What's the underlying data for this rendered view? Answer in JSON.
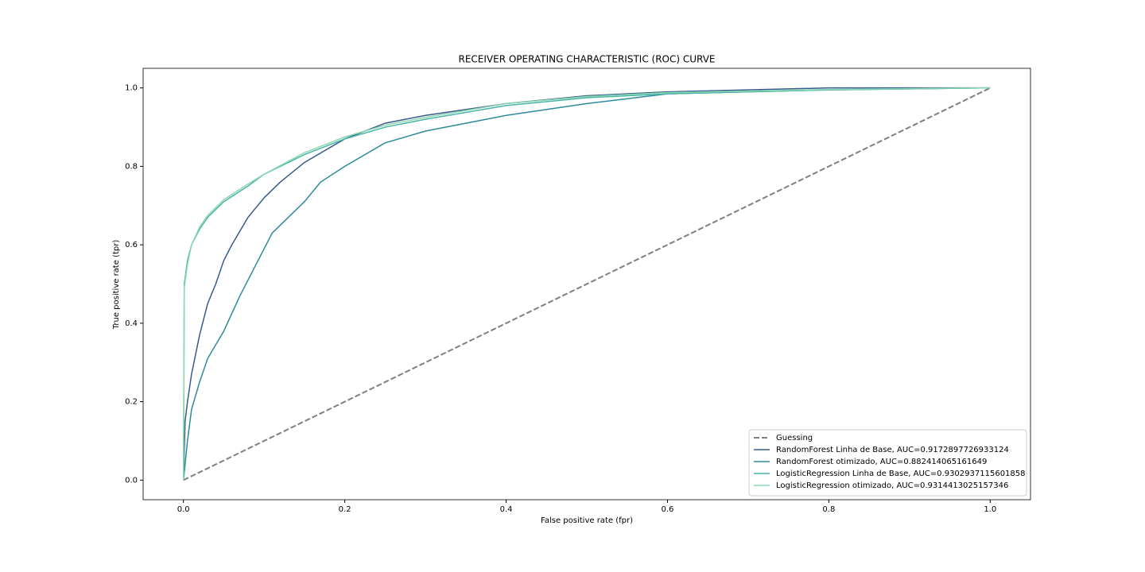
{
  "chart_data": {
    "type": "line",
    "title": "RECEIVER OPERATING CHARACTERISTIC (ROC) CURVE",
    "x_label": "False positive rate (fpr)",
    "y_label": "True positive rate (tpr)",
    "xlim": [
      -0.05,
      1.05
    ],
    "ylim": [
      -0.05,
      1.05
    ],
    "xticks": [
      {
        "value": 0,
        "label": "0.0"
      },
      0.2,
      0.4,
      0.6,
      0.8,
      {
        "value": 1,
        "label": "1.0"
      }
    ],
    "yticks": [
      {
        "value": 0,
        "label": "0.0"
      },
      0.2,
      0.4,
      0.6,
      0.8,
      {
        "value": 1,
        "label": "1.0"
      }
    ],
    "grid": false,
    "legend": "lower right",
    "series": [
      {
        "name": "Guessing",
        "color": "#808080",
        "linestyle": "dashed",
        "x": [
          0,
          1
        ],
        "values": [
          0,
          1
        ]
      },
      {
        "name": "RandomForest Linha de Base, AUC=0.9172897726933124",
        "color": "#365c8d",
        "x": [
          0,
          0.002,
          0.005,
          0.01,
          0.02,
          0.03,
          0.04,
          0.05,
          0.06,
          0.08,
          0.1,
          0.12,
          0.15,
          0.2,
          0.25,
          0.3,
          0.4,
          0.5,
          0.6,
          0.8,
          1
        ],
        "values": [
          0,
          0.15,
          0.2,
          0.27,
          0.37,
          0.45,
          0.5,
          0.56,
          0.6,
          0.67,
          0.72,
          0.76,
          0.81,
          0.87,
          0.91,
          0.93,
          0.96,
          0.98,
          0.99,
          1,
          1
        ]
      },
      {
        "name": "RandomForest otimizado, AUC=0.882414065161649",
        "color": "#2e8a9b",
        "x": [
          0,
          0.005,
          0.01,
          0.02,
          0.03,
          0.05,
          0.07,
          0.09,
          0.11,
          0.13,
          0.15,
          0.17,
          0.2,
          0.25,
          0.3,
          0.35,
          0.4,
          0.5,
          0.6,
          0.8,
          1
        ],
        "values": [
          0,
          0.1,
          0.18,
          0.25,
          0.31,
          0.38,
          0.47,
          0.55,
          0.63,
          0.67,
          0.71,
          0.76,
          0.8,
          0.86,
          0.89,
          0.91,
          0.93,
          0.96,
          0.985,
          0.995,
          1
        ]
      },
      {
        "name": "LogisticRegression Linha de Base, AUC=0.9302937115601858",
        "color": "#48b5a8",
        "x": [
          0,
          0.001,
          0.005,
          0.01,
          0.02,
          0.03,
          0.05,
          0.08,
          0.1,
          0.15,
          0.2,
          0.25,
          0.3,
          0.4,
          0.5,
          0.6,
          0.8,
          1
        ],
        "values": [
          0,
          0.5,
          0.56,
          0.6,
          0.64,
          0.67,
          0.71,
          0.75,
          0.78,
          0.83,
          0.87,
          0.9,
          0.92,
          0.955,
          0.975,
          0.985,
          0.995,
          1
        ]
      },
      {
        "name": "LogisticRegression otimizado, AUC=0.9314413025157346",
        "color": "#8dd7b1",
        "x": [
          0,
          0.001,
          0.005,
          0.01,
          0.02,
          0.03,
          0.05,
          0.08,
          0.1,
          0.15,
          0.2,
          0.25,
          0.3,
          0.4,
          0.5,
          0.6,
          0.8,
          1
        ],
        "values": [
          0,
          0.49,
          0.55,
          0.6,
          0.645,
          0.675,
          0.715,
          0.755,
          0.78,
          0.835,
          0.875,
          0.905,
          0.925,
          0.96,
          0.978,
          0.988,
          0.996,
          1
        ]
      }
    ]
  }
}
